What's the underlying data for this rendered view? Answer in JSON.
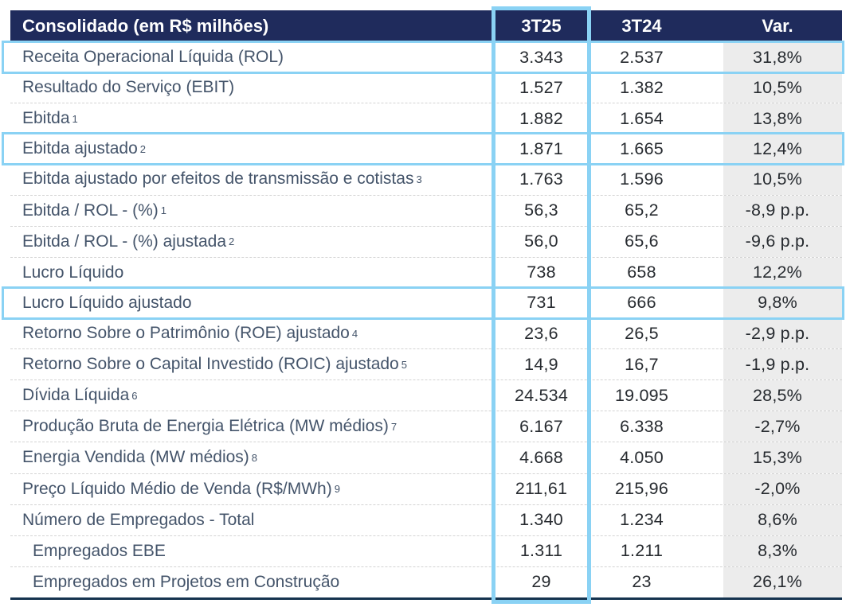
{
  "table": {
    "header": {
      "title": "Consolidado (em R$ milhões)",
      "col1": "3T25",
      "col2": "3T24",
      "col3": "Var."
    },
    "rows": [
      {
        "label": "Receita Operacional Líquida (ROL)",
        "sup": "",
        "v1": "3.343",
        "v2": "2.537",
        "var": "31,8%",
        "highlight": true,
        "indent": false
      },
      {
        "label": "Resultado do Serviço (EBIT)",
        "sup": "",
        "v1": "1.527",
        "v2": "1.382",
        "var": "10,5%",
        "highlight": false,
        "indent": false
      },
      {
        "label": "Ebitda",
        "sup": "1",
        "v1": "1.882",
        "v2": "1.654",
        "var": "13,8%",
        "highlight": false,
        "indent": false
      },
      {
        "label": "Ebitda ajustado",
        "sup": "2",
        "v1": "1.871",
        "v2": "1.665",
        "var": "12,4%",
        "highlight": true,
        "indent": false
      },
      {
        "label": "Ebitda ajustado por efeitos de transmissão e cotistas",
        "sup": "3",
        "v1": "1.763",
        "v2": "1.596",
        "var": "10,5%",
        "highlight": false,
        "indent": false
      },
      {
        "label": "Ebitda / ROL - (%)",
        "sup": "1",
        "v1": "56,3",
        "v2": "65,2",
        "var": "-8,9 p.p.",
        "highlight": false,
        "indent": false
      },
      {
        "label": "Ebitda / ROL - (%) ajustada",
        "sup": "2",
        "v1": "56,0",
        "v2": "65,6",
        "var": "-9,6 p.p.",
        "highlight": false,
        "indent": false
      },
      {
        "label": "Lucro Líquido",
        "sup": "",
        "v1": "738",
        "v2": "658",
        "var": "12,2%",
        "highlight": false,
        "indent": false
      },
      {
        "label": "Lucro Líquido ajustado",
        "sup": "",
        "v1": "731",
        "v2": "666",
        "var": "9,8%",
        "highlight": true,
        "indent": false
      },
      {
        "label": "Retorno Sobre o Patrimônio (ROE) ajustado",
        "sup": "4",
        "v1": "23,6",
        "v2": "26,5",
        "var": "-2,9 p.p.",
        "highlight": false,
        "indent": false
      },
      {
        "label": "Retorno Sobre o Capital Investido (ROIC) ajustado",
        "sup": "5",
        "v1": "14,9",
        "v2": "16,7",
        "var": "-1,9 p.p.",
        "highlight": false,
        "indent": false
      },
      {
        "label": "Dívida Líquida",
        "sup": "6",
        "v1": "24.534",
        "v2": "19.095",
        "var": "28,5%",
        "highlight": false,
        "indent": false
      },
      {
        "label": "Produção Bruta de Energia Elétrica (MW médios)",
        "sup": "7",
        "v1": "6.167",
        "v2": "6.338",
        "var": "-2,7%",
        "highlight": false,
        "indent": false
      },
      {
        "label": "Energia Vendida (MW médios)",
        "sup": "8",
        "v1": "4.668",
        "v2": "4.050",
        "var": "15,3%",
        "highlight": false,
        "indent": false
      },
      {
        "label": "Preço Líquido Médio de Venda (R$/MWh)",
        "sup": "9",
        "v1": "211,61",
        "v2": "215,96",
        "var": "-2,0%",
        "highlight": false,
        "indent": false
      },
      {
        "label": "Número de Empregados - Total",
        "sup": "",
        "v1": "1.340",
        "v2": "1.234",
        "var": "8,6%",
        "highlight": false,
        "indent": false
      },
      {
        "label": "Empregados EBE",
        "sup": "",
        "v1": "1.311",
        "v2": "1.211",
        "var": "8,3%",
        "highlight": false,
        "indent": true
      },
      {
        "label": "Empregados em Projetos em Construção",
        "sup": "",
        "v1": "29",
        "v2": "23",
        "var": "26,1%",
        "highlight": false,
        "indent": true
      }
    ]
  },
  "colors": {
    "header_navy": "#1f2b5c",
    "highlight_blue": "#8ad2f4",
    "var_column_gray": "#ececec",
    "bottom_rule_navy": "#15334f",
    "label_text": "#44546a",
    "number_text": "#272b30",
    "separator_gray": "#d3d3d3"
  }
}
